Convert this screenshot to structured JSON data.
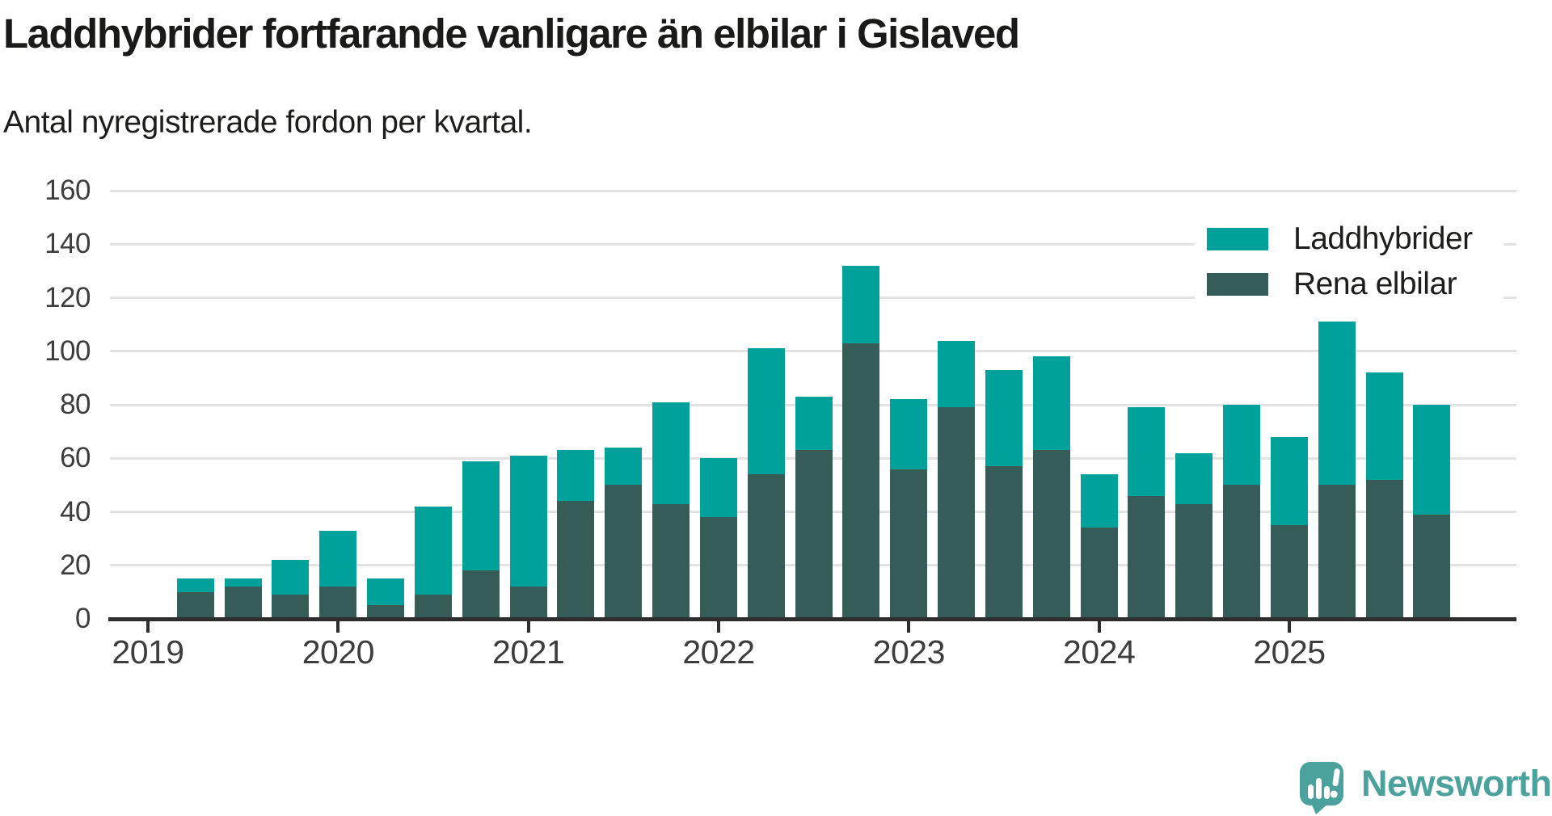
{
  "page": {
    "title": "Laddhybrider fortfarande vanligare än elbilar i Gislaved",
    "subtitle": "Antal nyregistrerade fordon per kvartal."
  },
  "legend": {
    "position": "top-right",
    "items": [
      {
        "label": "Laddhybrider",
        "color": "#00a19a"
      },
      {
        "label": "Rena elbilar",
        "color": "#355c57"
      }
    ]
  },
  "branding": {
    "wordmark": "Newsworthy",
    "logo_color": "#4ba19b",
    "logo_icon": "speech-bubble-bar-chart-exclamation"
  },
  "colors": {
    "laddhybrider": "#00a19a",
    "rena_elbilar": "#355c57",
    "gridline": "#e3e3e3",
    "axis_line": "#2e2e2e",
    "axis_text": "#3d3d3d",
    "title_text": "#1a1a19",
    "background": "#ffffff"
  },
  "chart_data": {
    "type": "bar",
    "stacked": true,
    "title": "Laddhybrider fortfarande vanligare än elbilar i Gislaved",
    "subtitle": "Antal nyregistrerade fordon per kvartal.",
    "xlabel": "",
    "ylabel": "",
    "ylim": [
      0,
      160
    ],
    "yticks": [
      0,
      20,
      40,
      60,
      80,
      100,
      120,
      140,
      160
    ],
    "grid": "horizontal",
    "legend_position": "top-right",
    "x_year_ticks": [
      "2019",
      "2020",
      "2021",
      "2022",
      "2023",
      "2024",
      "2025"
    ],
    "categories": [
      "2019 Q2",
      "2019 Q3",
      "2019 Q4",
      "2020 Q1",
      "2020 Q2",
      "2020 Q3",
      "2020 Q4",
      "2021 Q1",
      "2021 Q2",
      "2021 Q3",
      "2021 Q4",
      "2022 Q1",
      "2022 Q2",
      "2022 Q3",
      "2022 Q4",
      "2023 Q1",
      "2023 Q2",
      "2023 Q3",
      "2023 Q4",
      "2024 Q1",
      "2024 Q2",
      "2024 Q3",
      "2024 Q4",
      "2025 Q1",
      "2025 Q2",
      "2025 Q3",
      "2025 Q4"
    ],
    "series": [
      {
        "name": "Rena elbilar",
        "stack_position": "bottom",
        "color": "#355c57",
        "values": [
          10,
          12,
          9,
          12,
          5,
          9,
          18,
          12,
          44,
          50,
          43,
          38,
          54,
          63,
          103,
          56,
          79,
          57,
          63,
          34,
          46,
          43,
          50,
          35,
          50,
          52,
          39
        ]
      },
      {
        "name": "Laddhybrider",
        "stack_position": "top",
        "color": "#00a19a",
        "values": [
          5,
          3,
          13,
          21,
          10,
          33,
          41,
          49,
          19,
          14,
          38,
          22,
          47,
          20,
          29,
          26,
          25,
          36,
          35,
          20,
          33,
          19,
          30,
          33,
          61,
          40,
          41
        ]
      }
    ],
    "totals": [
      15,
      15,
      22,
      33,
      15,
      42,
      59,
      61,
      63,
      64,
      81,
      60,
      101,
      83,
      132,
      82,
      104,
      93,
      98,
      54,
      79,
      62,
      80,
      68,
      111,
      92,
      80
    ]
  }
}
